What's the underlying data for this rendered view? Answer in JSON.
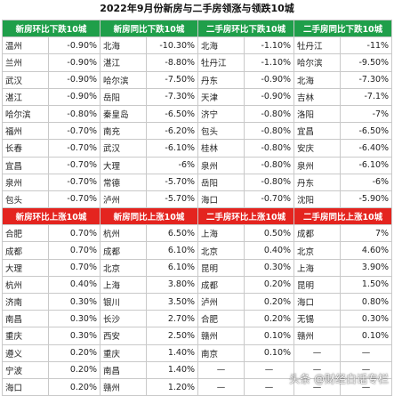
{
  "title": "2022年9月份新房与二手房领涨与领跌10城",
  "colors": {
    "green_header": "#1f9f4a",
    "red_header": "#e4241f"
  },
  "falling_headers": [
    "新房环比下跌10城",
    "新房同比下跌10城",
    "二手房环比下跌10城",
    "二手房同比下跌10城"
  ],
  "falling_rows": [
    [
      "温州",
      "-0.90%",
      "北海",
      "-10.30%",
      "北海",
      "-1.10%",
      "牡丹江",
      "-11%"
    ],
    [
      "兰州",
      "-0.90%",
      "湛江",
      "-8.80%",
      "牡丹江",
      "-1.10%",
      "哈尔滨",
      "-9.50%"
    ],
    [
      "武汉",
      "-0.90%",
      "哈尔滨",
      "-7.50%",
      "丹东",
      "-0.90%",
      "北海",
      "-7.30%"
    ],
    [
      "湛江",
      "-0.90%",
      "岳阳",
      "-7.30%",
      "天津",
      "-0.90%",
      "吉林",
      "-7.1%"
    ],
    [
      "哈尔滨",
      "-0.80%",
      "秦皇岛",
      "-6.50%",
      "济宁",
      "-0.80%",
      "洛阳",
      "-7%"
    ],
    [
      "福州",
      "-0.70%",
      "南充",
      "-6.20%",
      "包头",
      "-0.80%",
      "宜昌",
      "-6.50%"
    ],
    [
      "长春",
      "-0.70%",
      "武汉",
      "-6.10%",
      "桂林",
      "-0.80%",
      "安庆",
      "-6.40%"
    ],
    [
      "宜昌",
      "-0.70%",
      "大理",
      "-6%",
      "泉州",
      "-0.80%",
      "泉州",
      "-6.10%"
    ],
    [
      "泉州",
      "-0.70%",
      "常德",
      "-5.70%",
      "岳阳",
      "-0.80%",
      "丹东",
      "-6%"
    ],
    [
      "包头",
      "-0.70%",
      "泸州",
      "-5.70%",
      "海口",
      "-0.70%",
      "沈阳",
      "-5.90%"
    ]
  ],
  "rising_headers": [
    "新房环比上涨10城",
    "新房同比上涨10城",
    "二手房环比上涨10城",
    "二手房同比上涨10城"
  ],
  "rising_rows": [
    [
      "合肥",
      "0.70%",
      "杭州",
      "6.50%",
      "上海",
      "0.50%",
      "成都",
      "7%"
    ],
    [
      "成都",
      "0.70%",
      "成都",
      "6.10%",
      "北京",
      "0.40%",
      "北京",
      "4.60%"
    ],
    [
      "大理",
      "0.70%",
      "北京",
      "6.10%",
      "昆明",
      "0.30%",
      "上海",
      "3.90%"
    ],
    [
      "杭州",
      "0.40%",
      "上海",
      "3.80%",
      "成都",
      "0.20%",
      "昆明",
      "1.50%"
    ],
    [
      "济南",
      "0.30%",
      "银川",
      "3.50%",
      "泸州",
      "0.20%",
      "海口",
      "0.80%"
    ],
    [
      "南昌",
      "0.30%",
      "长沙",
      "2.70%",
      "合肥",
      "0.20%",
      "无锡",
      "0.30%"
    ],
    [
      "重庆",
      "0.30%",
      "西安",
      "2.50%",
      "赣州",
      "0.10%",
      "赣州",
      "0.10%"
    ],
    [
      "遵义",
      "0.20%",
      "重庆",
      "1.40%",
      "南京",
      "0.10%",
      "—",
      "—"
    ],
    [
      "宁波",
      "0.20%",
      "南昌",
      "1.40%",
      "—",
      "—",
      "—",
      "—"
    ],
    [
      "海口",
      "0.20%",
      "赣州",
      "1.20%",
      "—",
      "—",
      "—",
      "—"
    ]
  ],
  "watermark": "头条 @财经白话专栏"
}
